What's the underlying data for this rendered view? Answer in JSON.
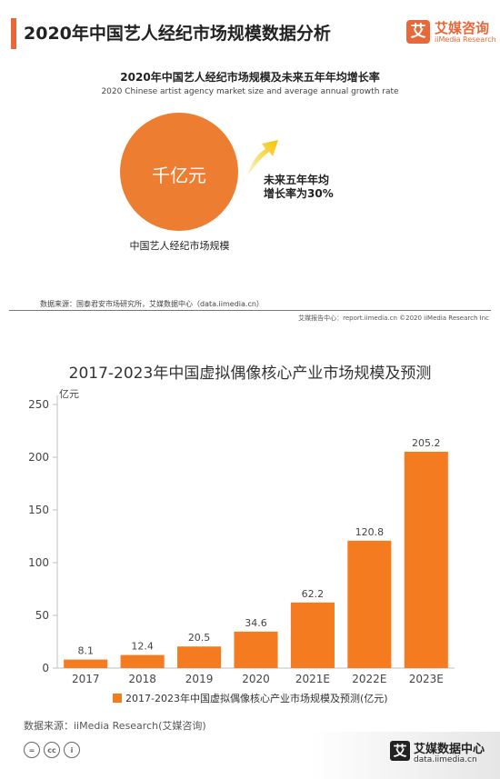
{
  "header": {
    "title": "2020年中国艺人经纪市场规模数据分析",
    "brand_icon": "艾",
    "brand_name": "艾媒咨询",
    "brand_en": "iiMedia Research"
  },
  "market_panel": {
    "title_cn": "2020年中国艺人经纪市场规模及未来五年年均增长率",
    "title_en": "2020 Chinese artist agency market size and average annual growth rate",
    "circle_value": "千亿元",
    "circle_label": "中国艺人经纪市场规模",
    "growth_line1": "未来五年年均",
    "growth_line2": "增长率为30%",
    "source": "数据来源：国泰君安市场研究所，艾媒数据中心（data.iimedia.cn）",
    "footer": "艾媒报告中心：report.iimedia.cn ©2020 iiMedia Research Inc",
    "colors": {
      "accent": "#e8683a",
      "circle": "#ed7d31"
    }
  },
  "chart_data": {
    "type": "bar",
    "title": "2017-2023年中国虚拟偶像核心产业市场规模及预测",
    "ylabel": "亿元",
    "xlabel": "",
    "categories": [
      "2017",
      "2018",
      "2019",
      "2020",
      "2021E",
      "2022E",
      "2023E"
    ],
    "series": [
      {
        "name": "2017-2023年中国虚拟偶像核心产业市场规模及预测(亿元)",
        "values": [
          8.1,
          12.4,
          20.5,
          34.6,
          62.2,
          120.8,
          205.2
        ],
        "color": "#f47b20"
      }
    ],
    "data_labels": [
      "8.1",
      "12.4",
      "20.5",
      "34.6",
      "62.2",
      "120.8",
      "205.2"
    ],
    "ylim": [
      0,
      250
    ],
    "yticks": [
      0,
      50,
      100,
      150,
      200,
      250
    ],
    "grid": false,
    "legend": "bottom"
  },
  "bottom": {
    "source": "数据来源：iiMedia Research(艾媒咨询)",
    "cc_icons": [
      "=",
      "cc",
      "i"
    ],
    "footer_icon": "艾",
    "footer_name": "艾媒数据中心",
    "footer_url": "data.iimedia.cn"
  }
}
